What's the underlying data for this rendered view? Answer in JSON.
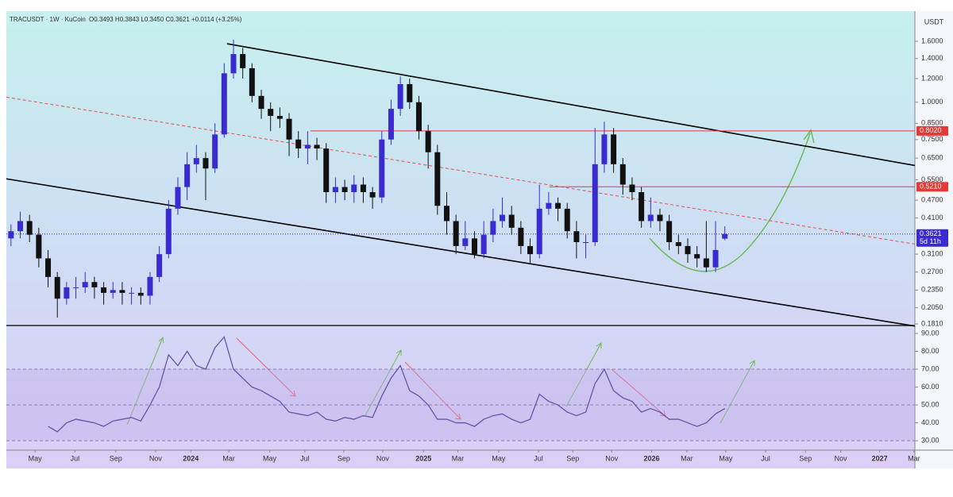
{
  "chart_data": [
    {
      "type": "candlestick",
      "title": "TRACUSDT · 1W · KuCoin",
      "subtitle": "O0.3493 H0.3843 L0.3450 C0.3621 +0.0114 (+3.25%)",
      "y_axis_label": "USDT",
      "log_scale": true,
      "up_color": "#3a2bd0",
      "down_color": "#111111",
      "xlim": [
        0,
        98
      ],
      "ylim": [
        0.181,
        1.97
      ],
      "yticks": [
        {
          "value": 1.6,
          "label": "1.6000"
        },
        {
          "value": 1.4,
          "label": "1.4000"
        },
        {
          "value": 1.2,
          "label": "1.2000"
        },
        {
          "value": 1.0,
          "label": "1.0000"
        },
        {
          "value": 0.85,
          "label": "0.8500"
        },
        {
          "value": 0.75,
          "label": "0.7500"
        },
        {
          "value": 0.65,
          "label": "0.6500"
        },
        {
          "value": 0.55,
          "label": "0.5500"
        },
        {
          "value": 0.47,
          "label": "0.4700"
        },
        {
          "value": 0.41,
          "label": "0.4100"
        },
        {
          "value": 0.31,
          "label": "0.3100"
        },
        {
          "value": 0.27,
          "label": "0.2700"
        },
        {
          "value": 0.235,
          "label": "0.2350"
        },
        {
          "value": 0.205,
          "label": "0.2050"
        },
        {
          "value": 0.181,
          "label": "0.1810"
        }
      ],
      "open": [
        0.35,
        0.37,
        0.4,
        0.36,
        0.3,
        0.26,
        0.22,
        0.24,
        0.24,
        0.25,
        0.24,
        0.23,
        0.235,
        0.23,
        0.23,
        0.225,
        0.26,
        0.31,
        0.44,
        0.52,
        0.62,
        0.65,
        0.6,
        0.78,
        1.25,
        1.45,
        1.3,
        1.05,
        0.95,
        0.9,
        0.88,
        0.75,
        0.7,
        0.72,
        0.7,
        0.5,
        0.52,
        0.5,
        0.53,
        0.5,
        0.48,
        0.75,
        0.95,
        1.15,
        1.0,
        0.8,
        0.68,
        0.45,
        0.4,
        0.33,
        0.35,
        0.31,
        0.36,
        0.4,
        0.42,
        0.38,
        0.33,
        0.31,
        0.44,
        0.46,
        0.44,
        0.37,
        0.34,
        0.34,
        0.62,
        0.78,
        0.62,
        0.53,
        0.5,
        0.4,
        0.42,
        0.4,
        0.34,
        0.33,
        0.31,
        0.3,
        0.28,
        0.3493
      ],
      "high": [
        0.39,
        0.43,
        0.42,
        0.38,
        0.32,
        0.27,
        0.25,
        0.26,
        0.27,
        0.26,
        0.25,
        0.25,
        0.25,
        0.24,
        0.24,
        0.27,
        0.33,
        0.47,
        0.56,
        0.68,
        0.72,
        0.68,
        0.85,
        1.35,
        1.62,
        1.52,
        1.35,
        1.1,
        1.0,
        0.96,
        0.92,
        0.8,
        0.8,
        0.76,
        0.73,
        0.56,
        0.55,
        0.57,
        0.56,
        0.52,
        0.8,
        1.02,
        1.22,
        1.2,
        1.05,
        0.84,
        0.72,
        0.5,
        0.42,
        0.4,
        0.37,
        0.4,
        0.44,
        0.48,
        0.45,
        0.4,
        0.35,
        0.53,
        0.5,
        0.48,
        0.46,
        0.4,
        0.36,
        0.82,
        0.86,
        0.82,
        0.65,
        0.56,
        0.52,
        0.48,
        0.44,
        0.42,
        0.36,
        0.35,
        0.33,
        0.4,
        0.4,
        0.3843
      ],
      "low": [
        0.33,
        0.35,
        0.34,
        0.28,
        0.24,
        0.19,
        0.21,
        0.22,
        0.23,
        0.22,
        0.21,
        0.22,
        0.21,
        0.21,
        0.21,
        0.21,
        0.25,
        0.3,
        0.42,
        0.47,
        0.58,
        0.47,
        0.58,
        0.76,
        1.2,
        1.2,
        1.0,
        0.88,
        0.8,
        0.82,
        0.66,
        0.65,
        0.62,
        0.64,
        0.46,
        0.46,
        0.47,
        0.46,
        0.46,
        0.44,
        0.46,
        0.72,
        0.9,
        0.95,
        0.75,
        0.6,
        0.42,
        0.36,
        0.31,
        0.32,
        0.3,
        0.3,
        0.34,
        0.38,
        0.36,
        0.31,
        0.29,
        0.3,
        0.42,
        0.4,
        0.35,
        0.3,
        0.3,
        0.33,
        0.58,
        0.58,
        0.49,
        0.47,
        0.38,
        0.38,
        0.37,
        0.32,
        0.31,
        0.29,
        0.28,
        0.27,
        0.27,
        0.345
      ],
      "close": [
        0.37,
        0.4,
        0.36,
        0.3,
        0.26,
        0.22,
        0.24,
        0.24,
        0.25,
        0.24,
        0.23,
        0.235,
        0.23,
        0.23,
        0.225,
        0.26,
        0.31,
        0.44,
        0.52,
        0.62,
        0.65,
        0.6,
        0.78,
        1.25,
        1.45,
        1.3,
        1.05,
        0.95,
        0.9,
        0.88,
        0.75,
        0.7,
        0.72,
        0.7,
        0.5,
        0.52,
        0.5,
        0.53,
        0.5,
        0.48,
        0.75,
        0.95,
        1.15,
        1.0,
        0.8,
        0.68,
        0.45,
        0.4,
        0.33,
        0.35,
        0.31,
        0.36,
        0.4,
        0.42,
        0.38,
        0.33,
        0.31,
        0.44,
        0.46,
        0.44,
        0.37,
        0.34,
        0.34,
        0.62,
        0.78,
        0.62,
        0.53,
        0.5,
        0.4,
        0.42,
        0.4,
        0.34,
        0.33,
        0.31,
        0.3,
        0.28,
        0.32,
        0.3621
      ],
      "hlines": [
        {
          "value": 0.802,
          "label": "0.8020",
          "color": "#e53935",
          "from_x": 32.8
        },
        {
          "value": 0.521,
          "label": "0.5210",
          "color": "#e53935",
          "from_x": 58.6
        }
      ],
      "price_line": {
        "value": 0.3621,
        "label": "0.3621",
        "sublabel": "5d 11h",
        "color": "#3a2bd0"
      },
      "trend_lines": [
        {
          "x": [
            23.8,
            98
          ],
          "y": [
            1.57,
            0.614
          ],
          "color": "#000000",
          "dashed": false
        },
        {
          "x": [
            0,
            98
          ],
          "y": [
            0.554,
            0.178
          ],
          "color": "#000000",
          "dashed": false
        },
        {
          "x": [
            0,
            98
          ],
          "y": [
            1.04,
            0.335
          ],
          "color": "#e05050",
          "dashed": true
        }
      ]
    },
    {
      "type": "line",
      "xlim": [
        0,
        98
      ],
      "ylim": [
        25.6,
        93.1
      ],
      "yticks": [
        {
          "value": 90,
          "label": "90.00"
        },
        {
          "value": 80,
          "label": "80.00"
        },
        {
          "value": 70,
          "label": "70.00"
        },
        {
          "value": 60,
          "label": "60.00"
        },
        {
          "value": 50,
          "label": "50.00"
        },
        {
          "value": 40,
          "label": "40.00"
        },
        {
          "value": 30,
          "label": "30.00"
        }
      ],
      "hlines": [
        70,
        50,
        30
      ],
      "band_color": "#b9a8e8",
      "series": [
        {
          "color": "#6455a8",
          "values": [
            null,
            null,
            null,
            null,
            38,
            35,
            40,
            42,
            41,
            40,
            38,
            41,
            42,
            43,
            41,
            50,
            60,
            78,
            72,
            80,
            72,
            70,
            82,
            88,
            70,
            65,
            60,
            58,
            55,
            52,
            46,
            45,
            44,
            46,
            42,
            41,
            43,
            42,
            44,
            43,
            55,
            65,
            72,
            58,
            55,
            50,
            42,
            42,
            40,
            40,
            38,
            42,
            44,
            45,
            42,
            40,
            42,
            56,
            52,
            50,
            46,
            44,
            46,
            62,
            70,
            58,
            54,
            52,
            46,
            48,
            46,
            42,
            42,
            40,
            38,
            40,
            45,
            48
          ]
        }
      ],
      "xticks": [
        {
          "value": 3.1,
          "label": "May"
        },
        {
          "value": 7.4,
          "label": "Jul"
        },
        {
          "value": 11.8,
          "label": "Sep"
        },
        {
          "value": 16.1,
          "label": "Nov"
        },
        {
          "value": 19.9,
          "label": "2024"
        },
        {
          "value": 24.0,
          "label": "Mar"
        },
        {
          "value": 28.4,
          "label": "May"
        },
        {
          "value": 32.2,
          "label": "Jul"
        },
        {
          "value": 36.4,
          "label": "Sep"
        },
        {
          "value": 40.6,
          "label": "Nov"
        },
        {
          "value": 45.0,
          "label": "2025"
        },
        {
          "value": 48.7,
          "label": "Mar"
        },
        {
          "value": 53.1,
          "label": "May"
        },
        {
          "value": 57.4,
          "label": "Jul"
        },
        {
          "value": 61.1,
          "label": "Sep"
        },
        {
          "value": 65.3,
          "label": "Nov"
        },
        {
          "value": 69.6,
          "label": "2026"
        },
        {
          "value": 73.4,
          "label": "Mar"
        },
        {
          "value": 77.6,
          "label": "May"
        },
        {
          "value": 81.9,
          "label": "Jul"
        },
        {
          "value": 86.2,
          "label": "Sep"
        },
        {
          "value": 90.0,
          "label": "Nov"
        },
        {
          "value": 94.2,
          "label": "2027"
        },
        {
          "value": 97.9,
          "label": "Mar"
        }
      ]
    }
  ]
}
